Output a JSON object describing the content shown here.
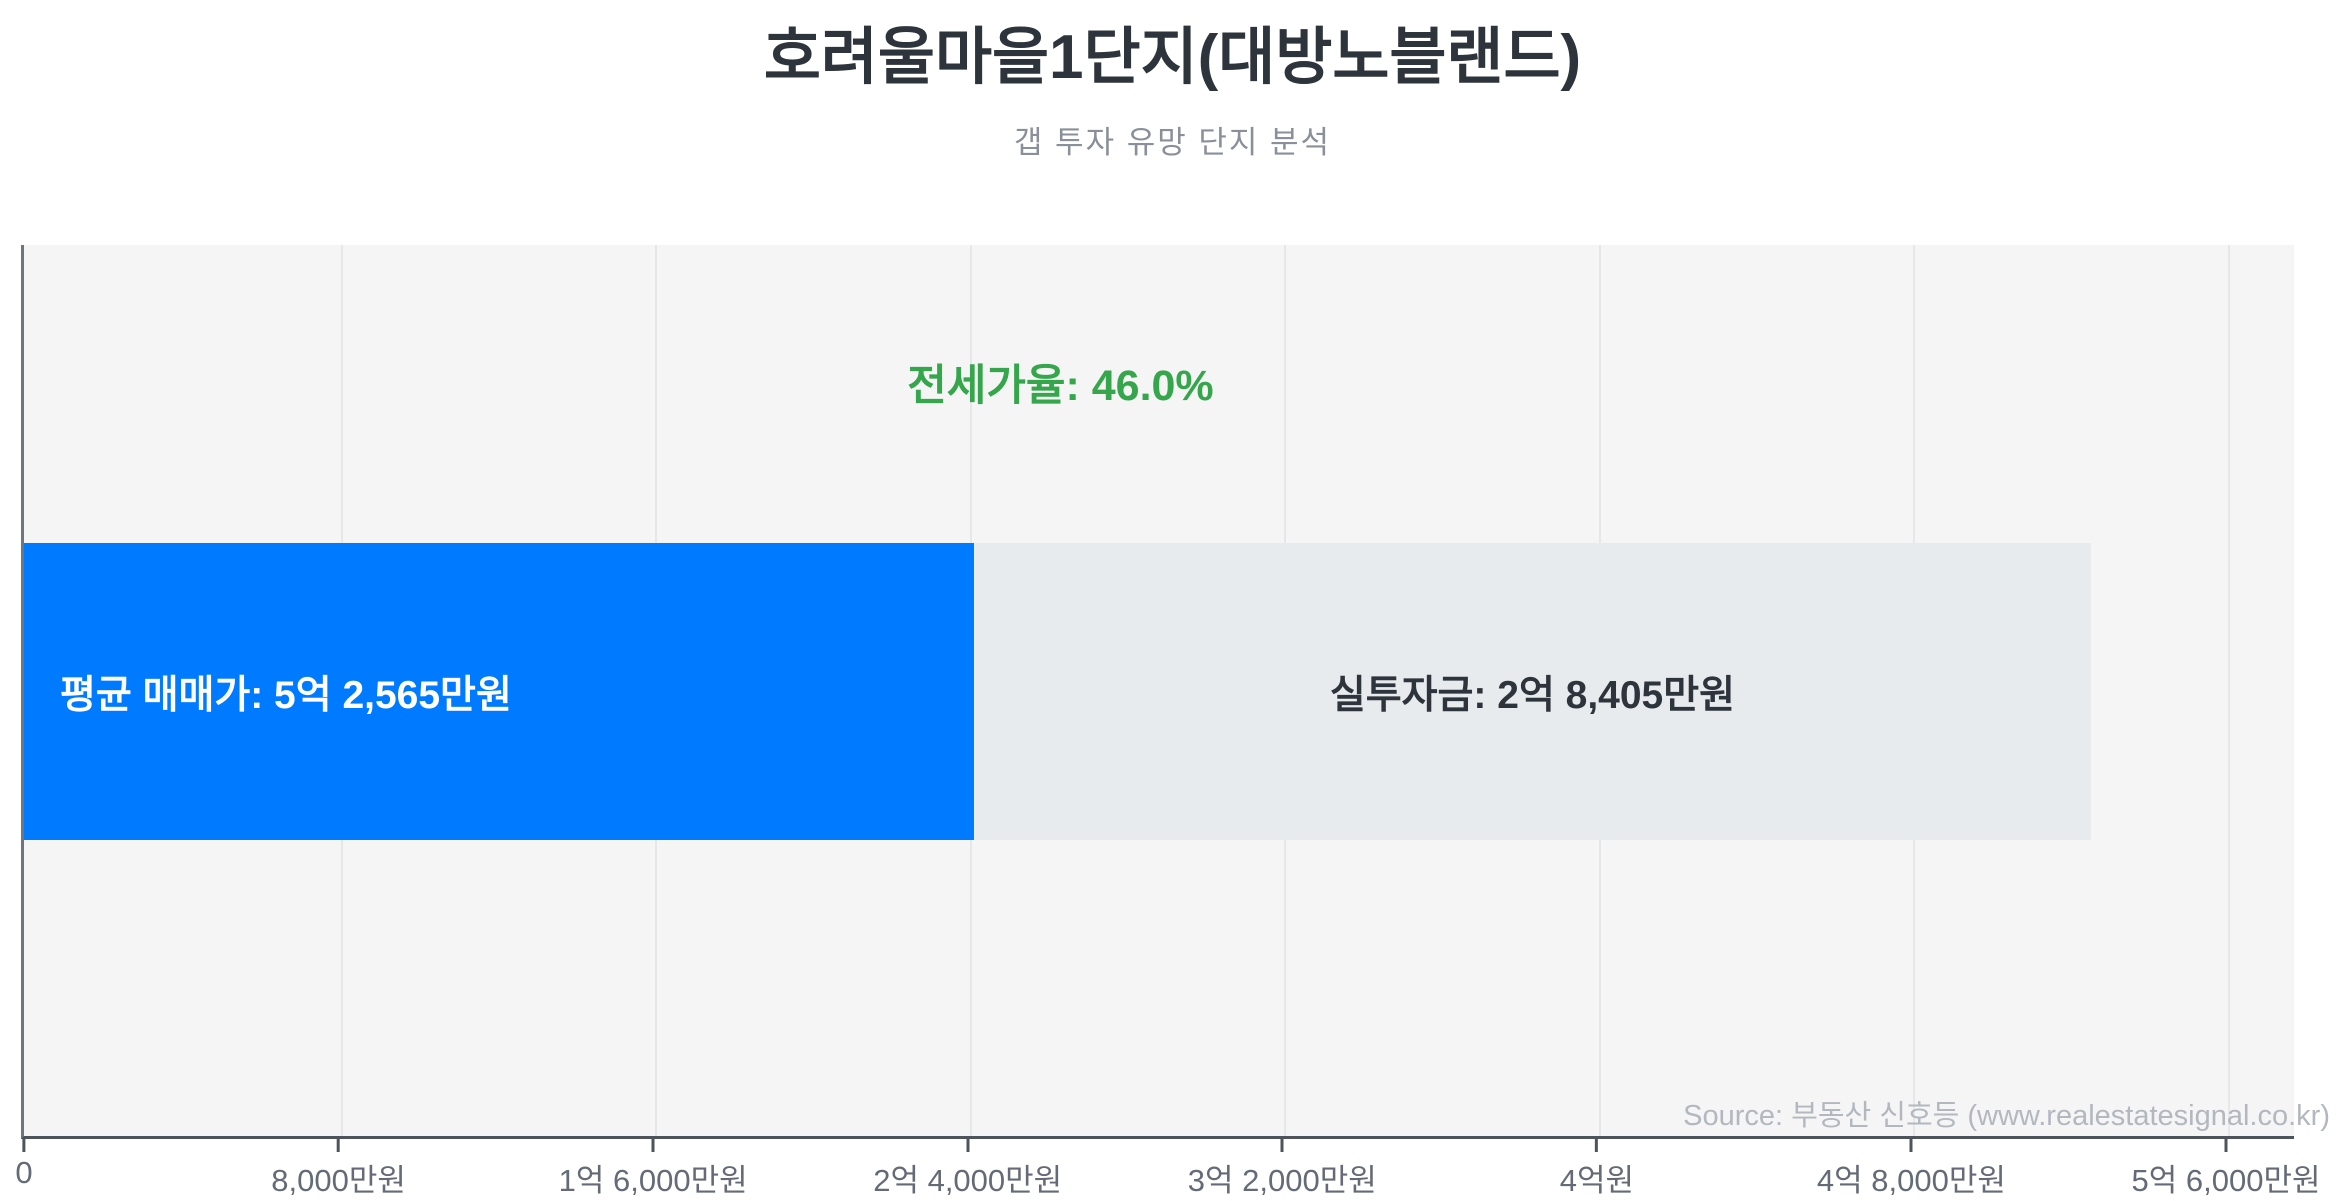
{
  "header": {
    "title": "호려울마을1단지(대방노블랜드)",
    "subtitle": "갭 투자 유망 단지 분석"
  },
  "footer": {
    "source": "Source: 부동산 신호등 (www.realestatesignal.co.kr)"
  },
  "chart_data": {
    "type": "bar",
    "orientation": "horizontal",
    "stacked": true,
    "title": "호려울마을1단지(대방노블랜드)",
    "subtitle": "갭 투자 유망 단지 분석",
    "unit": "만원",
    "values": {
      "avg_sale_price_manwon": 52565,
      "net_investment_manwon": 28405,
      "jeonse_ratio_pct": 46.0,
      "jeonse_portion_manwon": 24160
    },
    "annotation": {
      "text": "전세가율: 46.0%",
      "color": "#35a64b"
    },
    "segments": [
      {
        "name": "jeonse-portion",
        "label": "평균 매매가: 5억 2,565만원",
        "length_manwon": 24160,
        "color": "#007bff",
        "text_color": "#ffffff",
        "align": "left"
      },
      {
        "name": "net-investment",
        "label": "실투자금: 2억 8,405만원",
        "length_manwon": 28405,
        "color": "#e8ebee",
        "text_color": "#2e343b",
        "align": "center"
      }
    ],
    "xlim": [
      0,
      56000
    ],
    "x_ticks": [
      {
        "value": 0,
        "label": "0"
      },
      {
        "value": 8000,
        "label": "8,000만원"
      },
      {
        "value": 16000,
        "label": "1억 6,000만원"
      },
      {
        "value": 24000,
        "label": "2억 4,000만원"
      },
      {
        "value": 32000,
        "label": "3억 2,000만원"
      },
      {
        "value": 40000,
        "label": "4억원"
      },
      {
        "value": 48000,
        "label": "4억 8,000만원"
      },
      {
        "value": 56000,
        "label": "5억 6,000만원"
      }
    ],
    "grid": true,
    "legend": false,
    "colors": {
      "plot_bg": "#f5f5f6",
      "gridline": "#e6e7e9",
      "axis_line": "#4e545c",
      "tick_label": "#646b76",
      "title": "#2e343b",
      "subtitle": "#8a909a",
      "source": "#b3b8bf"
    }
  }
}
